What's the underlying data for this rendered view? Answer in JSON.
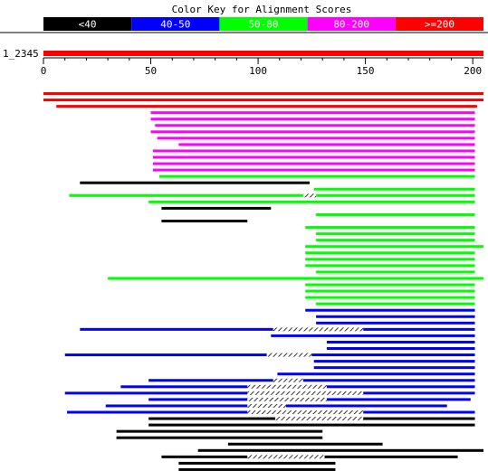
{
  "title": "Color Key for Alignment Scores",
  "color_key": [
    {
      "label": "<40",
      "color": "#000000"
    },
    {
      "label": "40-50",
      "color": "#0000ff"
    },
    {
      "label": "50-80",
      "color": "#00ff00"
    },
    {
      "label": "80-200",
      "color": "#ff00ff"
    },
    {
      "label": ">=200",
      "color": "#ff0000"
    }
  ],
  "query": {
    "label": "1_2345",
    "length": 205
  },
  "chart_data": {
    "type": "alignment_graphic",
    "x_range": [
      0,
      205
    ],
    "x_ticks": [
      "0",
      "50",
      "100",
      "150",
      "200"
    ],
    "x_tick_values": [
      0,
      50,
      100,
      150,
      200
    ],
    "hits": [
      {
        "score": ">=200",
        "segments": [
          [
            0,
            205
          ]
        ]
      },
      {
        "score": ">=200",
        "segments": [
          [
            0,
            205
          ]
        ]
      },
      {
        "score": ">=200",
        "segments": [
          [
            6,
            202
          ]
        ]
      },
      {
        "score": "80-200",
        "segments": [
          [
            50,
            201
          ]
        ]
      },
      {
        "score": "80-200",
        "segments": [
          [
            50,
            201
          ]
        ]
      },
      {
        "score": "80-200",
        "segments": [
          [
            52,
            201
          ]
        ]
      },
      {
        "score": "80-200",
        "segments": [
          [
            50,
            201
          ]
        ]
      },
      {
        "score": "80-200",
        "segments": [
          [
            53,
            201
          ]
        ]
      },
      {
        "score": "80-200",
        "segments": [
          [
            63,
            201
          ]
        ]
      },
      {
        "score": "80-200",
        "segments": [
          [
            51,
            201
          ]
        ]
      },
      {
        "score": "80-200",
        "segments": [
          [
            51,
            201
          ]
        ]
      },
      {
        "score": "80-200",
        "segments": [
          [
            51,
            201
          ]
        ]
      },
      {
        "score": "80-200",
        "segments": [
          [
            51,
            201
          ]
        ]
      },
      {
        "score": "50-80",
        "segments": [
          [
            54,
            201
          ]
        ]
      },
      {
        "score": "<40",
        "segments": [
          [
            17,
            124
          ]
        ]
      },
      {
        "score": "50-80",
        "segments": [
          [
            126,
            201
          ]
        ]
      },
      {
        "score": "50-80",
        "segments": [
          [
            12,
            121
          ],
          [
            127,
            201
          ]
        ],
        "gaps": [
          [
            121,
            127
          ]
        ]
      },
      {
        "score": "50-80",
        "segments": [
          [
            49,
            201
          ]
        ]
      },
      {
        "score": "<40",
        "segments": [
          [
            55,
            106
          ]
        ]
      },
      {
        "score": "50-80",
        "segments": [
          [
            127,
            201
          ]
        ]
      },
      {
        "score": "<40",
        "segments": [
          [
            55,
            95
          ]
        ]
      },
      {
        "score": "50-80",
        "segments": [
          [
            122,
            201
          ]
        ]
      },
      {
        "score": "50-80",
        "segments": [
          [
            127,
            201
          ]
        ]
      },
      {
        "score": "50-80",
        "segments": [
          [
            127,
            201
          ]
        ]
      },
      {
        "score": "50-80",
        "segments": [
          [
            122,
            205
          ]
        ]
      },
      {
        "score": "50-80",
        "segments": [
          [
            122,
            201
          ]
        ]
      },
      {
        "score": "50-80",
        "segments": [
          [
            122,
            201
          ]
        ]
      },
      {
        "score": "50-80",
        "segments": [
          [
            122,
            201
          ]
        ]
      },
      {
        "score": "50-80",
        "segments": [
          [
            127,
            201
          ]
        ]
      },
      {
        "score": "50-80",
        "segments": [
          [
            30,
            205
          ]
        ]
      },
      {
        "score": "50-80",
        "segments": [
          [
            122,
            201
          ]
        ]
      },
      {
        "score": "50-80",
        "segments": [
          [
            122,
            201
          ]
        ]
      },
      {
        "score": "50-80",
        "segments": [
          [
            122,
            201
          ]
        ]
      },
      {
        "score": "50-80",
        "segments": [
          [
            127,
            201
          ]
        ]
      },
      {
        "score": "40-50",
        "segments": [
          [
            122,
            201
          ]
        ]
      },
      {
        "score": "40-50",
        "segments": [
          [
            127,
            201
          ]
        ]
      },
      {
        "score": "40-50",
        "segments": [
          [
            127,
            201
          ]
        ]
      },
      {
        "score": "40-50",
        "segments": [
          [
            17,
            107
          ],
          [
            149,
            201
          ]
        ],
        "gaps": [
          [
            107,
            149
          ]
        ]
      },
      {
        "score": "40-50",
        "segments": [
          [
            106,
            201
          ]
        ]
      },
      {
        "score": "40-50",
        "segments": [
          [
            132,
            201
          ]
        ]
      },
      {
        "score": "40-50",
        "segments": [
          [
            132,
            201
          ]
        ]
      },
      {
        "score": "40-50",
        "segments": [
          [
            10,
            104
          ],
          [
            125,
            201
          ]
        ],
        "gaps": [
          [
            104,
            125
          ]
        ]
      },
      {
        "score": "40-50",
        "segments": [
          [
            126,
            201
          ]
        ]
      },
      {
        "score": "40-50",
        "segments": [
          [
            126,
            201
          ]
        ]
      },
      {
        "score": "40-50",
        "segments": [
          [
            109,
            201
          ]
        ]
      },
      {
        "score": "40-50",
        "segments": [
          [
            49,
            107
          ],
          [
            121,
            201
          ]
        ],
        "gaps": [
          [
            107,
            121
          ]
        ]
      },
      {
        "score": "40-50",
        "segments": [
          [
            36,
            95
          ],
          [
            132,
            201
          ]
        ],
        "gaps": [
          [
            95,
            132
          ]
        ]
      },
      {
        "score": "40-50",
        "segments": [
          [
            10,
            95
          ],
          [
            149,
            201
          ]
        ],
        "gaps": [
          [
            95,
            149
          ]
        ]
      },
      {
        "score": "40-50",
        "segments": [
          [
            49,
            95
          ],
          [
            132,
            199
          ]
        ],
        "gaps": [
          [
            95,
            132
          ]
        ]
      },
      {
        "score": "40-50",
        "segments": [
          [
            29,
            95
          ],
          [
            113,
            188
          ]
        ],
        "gaps": [
          [
            95,
            113
          ]
        ]
      },
      {
        "score": "40-50",
        "segments": [
          [
            11,
            95
          ],
          [
            149,
            201
          ]
        ],
        "gaps": [
          [
            95,
            149
          ]
        ]
      },
      {
        "score": "<40",
        "segments": [
          [
            49,
            108
          ],
          [
            149,
            201
          ]
        ],
        "gaps": [
          [
            108,
            149
          ]
        ]
      },
      {
        "score": "<40",
        "segments": [
          [
            49,
            201
          ]
        ]
      },
      {
        "score": "<40",
        "segments": [
          [
            34,
            130
          ]
        ]
      },
      {
        "score": "<40",
        "segments": [
          [
            34,
            130
          ]
        ]
      },
      {
        "score": "<40",
        "segments": [
          [
            86,
            158
          ]
        ]
      },
      {
        "score": "<40",
        "segments": [
          [
            72,
            205
          ]
        ]
      },
      {
        "score": "<40",
        "segments": [
          [
            55,
            95
          ],
          [
            131,
            193
          ]
        ],
        "gaps": [
          [
            95,
            131
          ]
        ]
      },
      {
        "score": "<40",
        "segments": [
          [
            63,
            136
          ]
        ]
      },
      {
        "score": "<40",
        "segments": [
          [
            63,
            136
          ]
        ]
      }
    ]
  }
}
